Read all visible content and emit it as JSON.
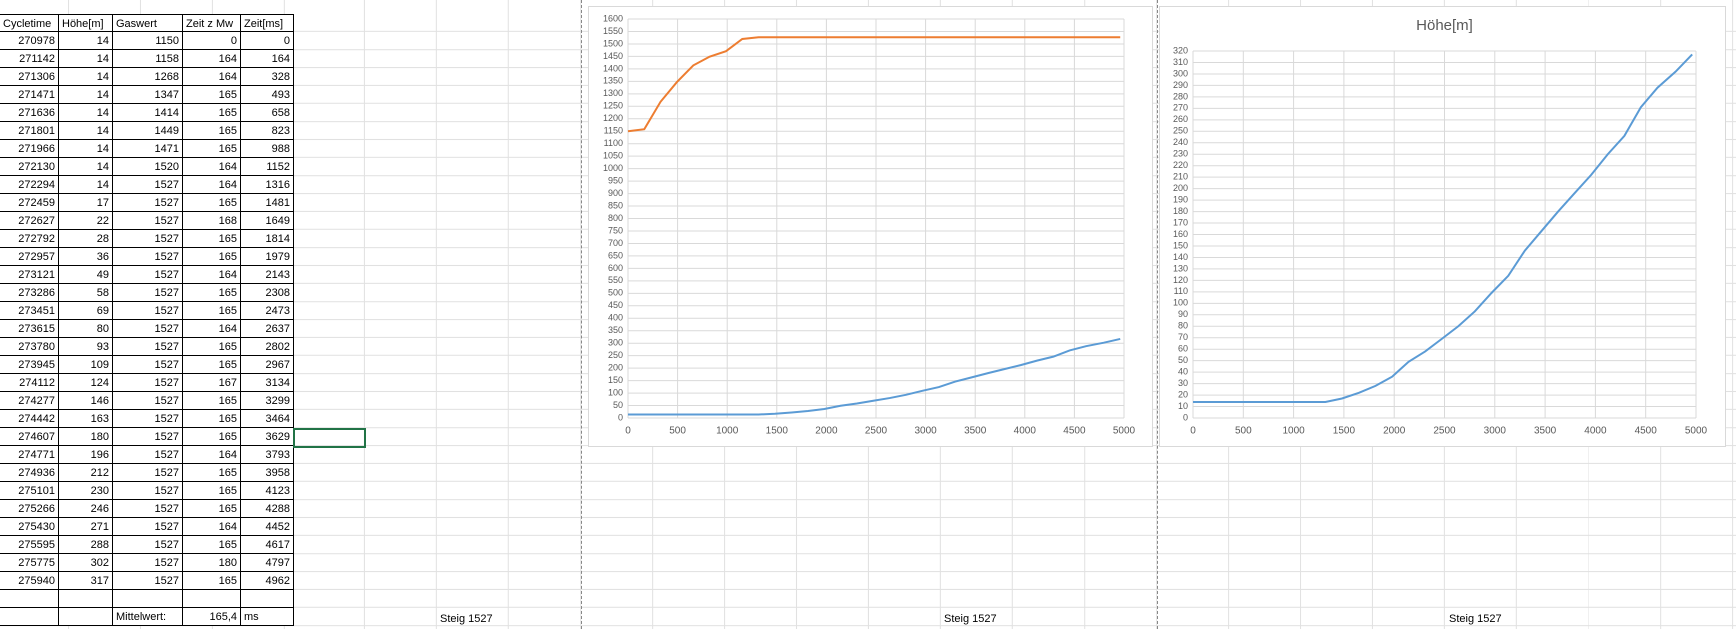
{
  "table": {
    "header": [
      "Cycletime",
      "Höhe[m]",
      "Gaswert",
      "Zeit z Mw",
      "Zeit[ms]"
    ],
    "rows": [
      [
        270978,
        14,
        1150,
        0,
        0
      ],
      [
        271142,
        14,
        1158,
        164,
        164
      ],
      [
        271306,
        14,
        1268,
        164,
        328
      ],
      [
        271471,
        14,
        1347,
        165,
        493
      ],
      [
        271636,
        14,
        1414,
        165,
        658
      ],
      [
        271801,
        14,
        1449,
        165,
        823
      ],
      [
        271966,
        14,
        1471,
        165,
        988
      ],
      [
        272130,
        14,
        1520,
        164,
        1152
      ],
      [
        272294,
        14,
        1527,
        164,
        1316
      ],
      [
        272459,
        17,
        1527,
        165,
        1481
      ],
      [
        272627,
        22,
        1527,
        168,
        1649
      ],
      [
        272792,
        28,
        1527,
        165,
        1814
      ],
      [
        272957,
        36,
        1527,
        165,
        1979
      ],
      [
        273121,
        49,
        1527,
        164,
        2143
      ],
      [
        273286,
        58,
        1527,
        165,
        2308
      ],
      [
        273451,
        69,
        1527,
        165,
        2473
      ],
      [
        273615,
        80,
        1527,
        164,
        2637
      ],
      [
        273780,
        93,
        1527,
        165,
        2802
      ],
      [
        273945,
        109,
        1527,
        165,
        2967
      ],
      [
        274112,
        124,
        1527,
        167,
        3134
      ],
      [
        274277,
        146,
        1527,
        165,
        3299
      ],
      [
        274442,
        163,
        1527,
        165,
        3464
      ],
      [
        274607,
        180,
        1527,
        165,
        3629
      ],
      [
        274771,
        196,
        1527,
        164,
        3793
      ],
      [
        274936,
        212,
        1527,
        165,
        3958
      ],
      [
        275101,
        230,
        1527,
        165,
        4123
      ],
      [
        275266,
        246,
        1527,
        165,
        4288
      ],
      [
        275430,
        271,
        1527,
        164,
        4452
      ],
      [
        275595,
        288,
        1527,
        165,
        4617
      ],
      [
        275775,
        302,
        1527,
        180,
        4797
      ],
      [
        275940,
        317,
        1527,
        165,
        4962
      ]
    ],
    "footer": {
      "label": "Mittelwert:",
      "value": "165,4",
      "unit": "ms"
    }
  },
  "sheet_labels": [
    "Steig 1527",
    "Steig 1527",
    "Steig 1527"
  ],
  "chart_data": [
    {
      "type": "line",
      "x": [
        0,
        164,
        328,
        493,
        658,
        823,
        988,
        1152,
        1316,
        1481,
        1649,
        1814,
        1979,
        2143,
        2308,
        2473,
        2637,
        2802,
        2967,
        3134,
        3299,
        3464,
        3629,
        3793,
        3958,
        4123,
        4288,
        4452,
        4617,
        4797,
        4962
      ],
      "series": [
        {
          "color": "#5b9bd5",
          "values": [
            14,
            14,
            14,
            14,
            14,
            14,
            14,
            14,
            14,
            17,
            22,
            28,
            36,
            49,
            58,
            69,
            80,
            93,
            109,
            124,
            146,
            163,
            180,
            196,
            212,
            230,
            246,
            271,
            288,
            302,
            317
          ]
        },
        {
          "color": "#ed7d31",
          "values": [
            1150,
            1158,
            1268,
            1347,
            1414,
            1449,
            1471,
            1520,
            1527,
            1527,
            1527,
            1527,
            1527,
            1527,
            1527,
            1527,
            1527,
            1527,
            1527,
            1527,
            1527,
            1527,
            1527,
            1527,
            1527,
            1527,
            1527,
            1527,
            1527,
            1527,
            1527
          ]
        }
      ],
      "xlim": [
        0,
        5000
      ],
      "xticks": [
        0,
        500,
        1000,
        1500,
        2000,
        2500,
        3000,
        3500,
        4000,
        4500,
        5000
      ],
      "ylim": [
        0,
        1600
      ],
      "yticks": [
        0,
        50,
        100,
        150,
        200,
        250,
        300,
        350,
        400,
        450,
        500,
        550,
        600,
        650,
        700,
        750,
        800,
        850,
        900,
        950,
        1000,
        1050,
        1100,
        1150,
        1200,
        1250,
        1300,
        1350,
        1400,
        1450,
        1500,
        1550,
        1600
      ],
      "grid": true
    },
    {
      "type": "line",
      "title": "Höhe[m]",
      "x": [
        0,
        164,
        328,
        493,
        658,
        823,
        988,
        1152,
        1316,
        1481,
        1649,
        1814,
        1979,
        2143,
        2308,
        2473,
        2637,
        2802,
        2967,
        3134,
        3299,
        3464,
        3629,
        3793,
        3958,
        4123,
        4288,
        4452,
        4617,
        4797,
        4962
      ],
      "series": [
        {
          "color": "#5b9bd5",
          "values": [
            14,
            14,
            14,
            14,
            14,
            14,
            14,
            14,
            14,
            17,
            22,
            28,
            36,
            49,
            58,
            69,
            80,
            93,
            109,
            124,
            146,
            163,
            180,
            196,
            212,
            230,
            246,
            271,
            288,
            302,
            317
          ]
        }
      ],
      "xlim": [
        0,
        5000
      ],
      "xticks": [
        0,
        500,
        1000,
        1500,
        2000,
        2500,
        3000,
        3500,
        4000,
        4500,
        5000
      ],
      "ylim": [
        0,
        320
      ],
      "yticks": [
        0,
        10,
        20,
        30,
        40,
        50,
        60,
        70,
        80,
        90,
        100,
        110,
        120,
        130,
        140,
        150,
        160,
        170,
        180,
        190,
        200,
        210,
        220,
        230,
        240,
        250,
        260,
        270,
        280,
        290,
        300,
        310,
        320
      ],
      "grid": true
    }
  ]
}
